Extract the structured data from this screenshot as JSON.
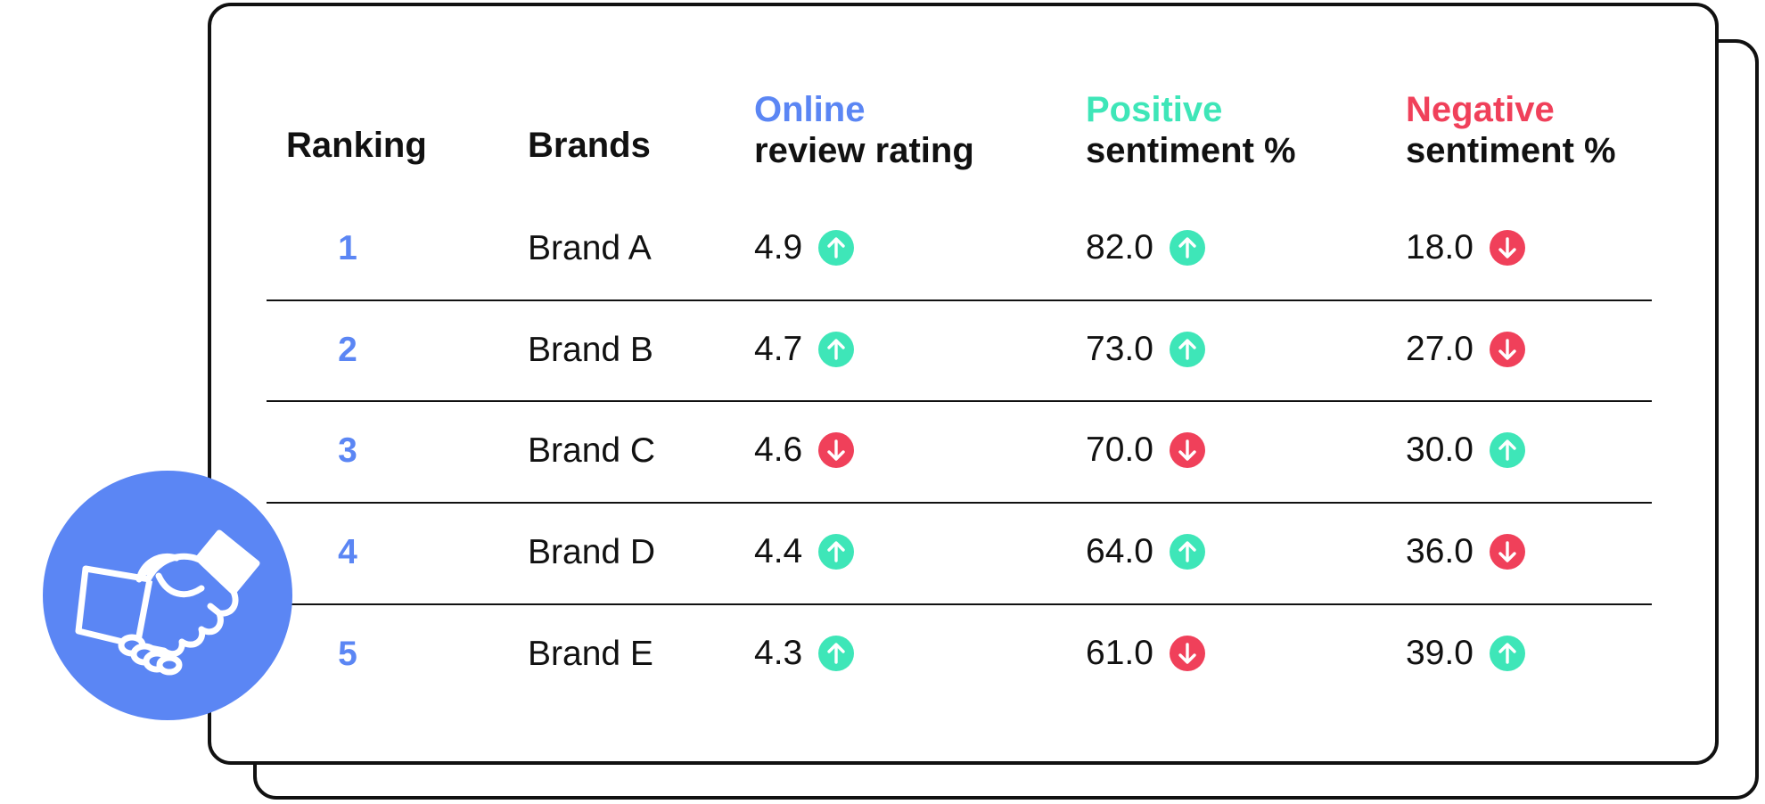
{
  "colors": {
    "accent_blue": "#5b86f4",
    "positive_green": "#3ee6b8",
    "negative_red": "#f0405a"
  },
  "headers": {
    "ranking": "Ranking",
    "brands": "Brands",
    "rating": {
      "highlight": "Online",
      "rest": "review rating"
    },
    "positive": {
      "highlight": "Positive",
      "rest": "sentiment %"
    },
    "negative": {
      "highlight": "Negative",
      "rest": "sentiment %"
    }
  },
  "rows": [
    {
      "rank": "1",
      "brand": "Brand A",
      "rating": "4.9",
      "rating_trend": "up",
      "positive": "82.0",
      "positive_trend": "up",
      "negative": "18.0",
      "negative_trend": "down"
    },
    {
      "rank": "2",
      "brand": "Brand B",
      "rating": "4.7",
      "rating_trend": "up",
      "positive": "73.0",
      "positive_trend": "up",
      "negative": "27.0",
      "negative_trend": "down"
    },
    {
      "rank": "3",
      "brand": "Brand C",
      "rating": "4.6",
      "rating_trend": "down",
      "positive": "70.0",
      "positive_trend": "down",
      "negative": "30.0",
      "negative_trend": "up"
    },
    {
      "rank": "4",
      "brand": "Brand D",
      "rating": "4.4",
      "rating_trend": "up",
      "positive": "64.0",
      "positive_trend": "up",
      "negative": "36.0",
      "negative_trend": "down"
    },
    {
      "rank": "5",
      "brand": "Brand E",
      "rating": "4.3",
      "rating_trend": "up",
      "positive": "61.0",
      "positive_trend": "down",
      "negative": "39.0",
      "negative_trend": "up"
    }
  ],
  "badge": {
    "icon": "handshake-icon"
  }
}
